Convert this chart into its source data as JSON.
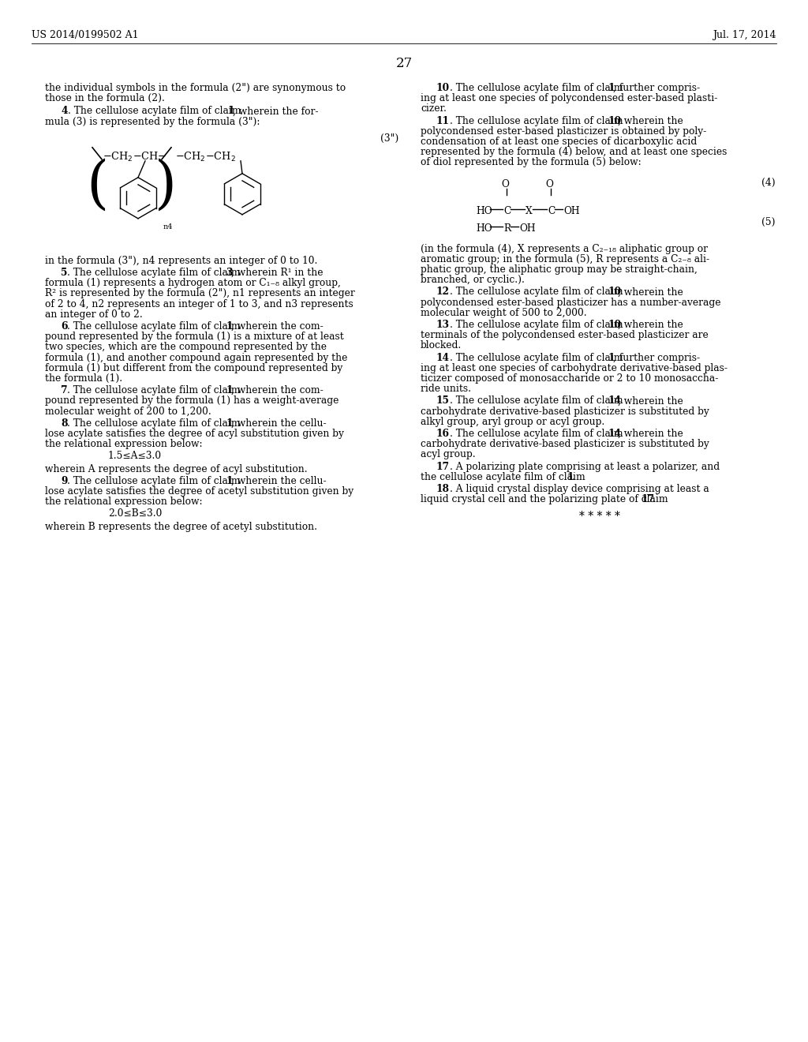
{
  "header_left": "US 2014/0199502 A1",
  "header_right": "Jul. 17, 2014",
  "page_number": "27",
  "background_color": "#ffffff"
}
